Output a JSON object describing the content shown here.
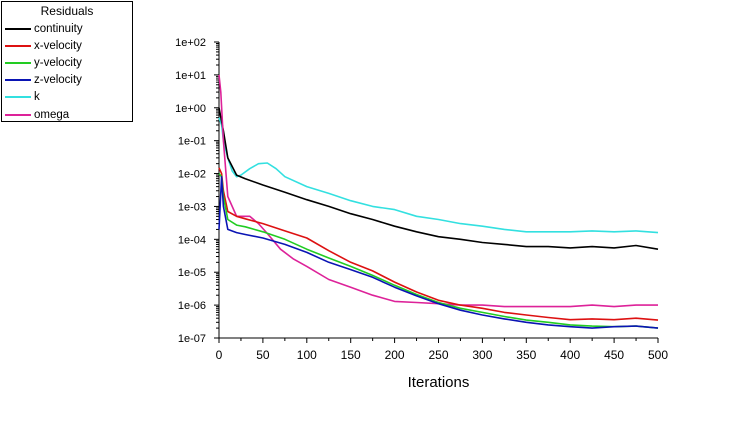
{
  "chart_data": {
    "type": "line",
    "title": "",
    "xlabel": "Iterations",
    "ylabel": "",
    "xlim": [
      0,
      500
    ],
    "ylim": [
      1e-07,
      100
    ],
    "yscale": "log",
    "grid": false,
    "legend_position": "top-left outside",
    "legend_title": "Residuals",
    "x_ticks": [
      "0",
      "50",
      "100",
      "150",
      "200",
      "250",
      "300",
      "350",
      "400",
      "450",
      "500"
    ],
    "y_ticks": [
      "1e+02",
      "1e+01",
      "1e+00",
      "1e-01",
      "1e-02",
      "1e-03",
      "1e-04",
      "1e-05",
      "1e-06",
      "1e-07"
    ],
    "series": [
      {
        "name": "continuity",
        "color": "#000000",
        "x": [
          0,
          5,
          10,
          20,
          30,
          50,
          75,
          100,
          125,
          150,
          175,
          200,
          225,
          250,
          275,
          300,
          325,
          350,
          375,
          400,
          425,
          450,
          475,
          500
        ],
        "y": [
          1.0,
          0.2,
          0.03,
          0.009,
          0.007,
          0.0045,
          0.0027,
          0.0016,
          0.001,
          0.0006,
          0.0004,
          0.00025,
          0.00017,
          0.00012,
          0.0001,
          8e-05,
          7e-05,
          6e-05,
          6e-05,
          5.5e-05,
          6e-05,
          5.5e-05,
          6.5e-05,
          5e-05
        ]
      },
      {
        "name": "x-velocity",
        "color": "#dd1111",
        "x": [
          0,
          3,
          5,
          10,
          20,
          30,
          50,
          75,
          100,
          125,
          150,
          175,
          200,
          225,
          250,
          275,
          300,
          325,
          350,
          375,
          400,
          425,
          450,
          475,
          500
        ],
        "y": [
          0.015,
          0.01,
          0.003,
          0.0007,
          0.0005,
          0.00042,
          0.0003,
          0.00018,
          0.00011,
          4.5e-05,
          2e-05,
          1.1e-05,
          5e-06,
          2.5e-06,
          1.4e-06,
          1e-06,
          8e-07,
          6e-07,
          5e-07,
          4.2e-07,
          3.6e-07,
          3.8e-07,
          3.6e-07,
          4e-07,
          3.5e-07
        ]
      },
      {
        "name": "y-velocity",
        "color": "#22cc22",
        "x": [
          0,
          3,
          5,
          10,
          20,
          30,
          50,
          75,
          100,
          125,
          150,
          175,
          200,
          225,
          250,
          275,
          300,
          325,
          350,
          375,
          400,
          425,
          450,
          475,
          500
        ],
        "y": [
          0.01,
          0.008,
          0.002,
          0.0004,
          0.00027,
          0.00024,
          0.00017,
          0.0001,
          5e-05,
          2.7e-05,
          1.5e-05,
          8e-06,
          4e-06,
          2.1e-06,
          1.2e-06,
          8e-07,
          6e-07,
          4.5e-07,
          3.5e-07,
          3e-07,
          2.5e-07,
          2.3e-07,
          2.2e-07,
          2.3e-07,
          2e-07
        ]
      },
      {
        "name": "z-velocity",
        "color": "#0a14b4",
        "x": [
          0,
          3,
          5,
          10,
          20,
          30,
          50,
          75,
          100,
          125,
          150,
          175,
          200,
          225,
          250,
          275,
          300,
          325,
          350,
          375,
          400,
          425,
          450,
          475,
          500
        ],
        "y": [
          0.0002,
          0.008,
          0.001,
          0.0002,
          0.00016,
          0.00014,
          0.00011,
          7e-05,
          4e-05,
          2e-05,
          1.2e-05,
          7e-06,
          3.5e-06,
          1.9e-06,
          1.1e-06,
          7e-07,
          5e-07,
          3.8e-07,
          3e-07,
          2.5e-07,
          2.2e-07,
          2e-07,
          2.2e-07,
          2.3e-07,
          2e-07
        ]
      },
      {
        "name": "k",
        "color": "#33e0e0",
        "x": [
          0,
          3,
          5,
          10,
          15,
          20,
          25,
          35,
          45,
          55,
          65,
          75,
          100,
          125,
          150,
          175,
          200,
          225,
          250,
          275,
          300,
          325,
          350,
          375,
          400,
          425,
          450,
          475,
          500
        ],
        "y": [
          0.5,
          0.3,
          0.1,
          0.03,
          0.012,
          0.008,
          0.009,
          0.014,
          0.02,
          0.021,
          0.014,
          0.008,
          0.004,
          0.0025,
          0.0015,
          0.001,
          0.0008,
          0.0005,
          0.0004,
          0.0003,
          0.00025,
          0.0002,
          0.00017,
          0.00017,
          0.00017,
          0.00018,
          0.00017,
          0.00018,
          0.00016
        ]
      },
      {
        "name": "omega",
        "color": "#dd2299",
        "x": [
          0,
          2,
          5,
          10,
          20,
          30,
          35,
          45,
          55,
          70,
          85,
          100,
          125,
          150,
          175,
          200,
          225,
          250,
          275,
          300,
          325,
          350,
          375,
          400,
          425,
          450,
          475,
          500
        ],
        "y": [
          10,
          3,
          0.1,
          0.002,
          0.0005,
          0.0005,
          0.0005,
          0.0003,
          0.00015,
          5e-05,
          2.5e-05,
          1.5e-05,
          6e-06,
          3.5e-06,
          2e-06,
          1.3e-06,
          1.2e-06,
          1.1e-06,
          1e-06,
          1e-06,
          9e-07,
          9e-07,
          9e-07,
          9e-07,
          1e-06,
          9e-07,
          1e-06,
          1e-06
        ]
      }
    ]
  }
}
